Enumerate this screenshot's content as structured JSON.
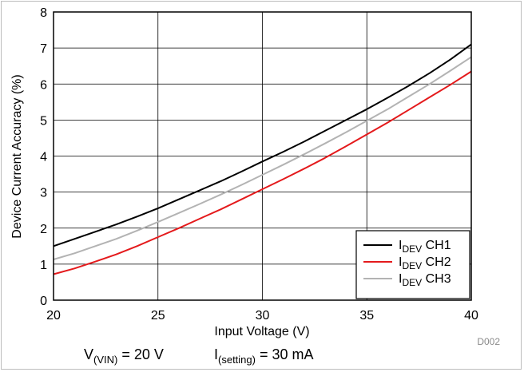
{
  "chart_data": {
    "type": "line",
    "xlabel": "Input Voltage (V)",
    "ylabel": "Device Current Accuracy (%)",
    "xlim": [
      20,
      40
    ],
    "ylim": [
      0,
      8
    ],
    "x_ticks": [
      20,
      25,
      30,
      35,
      40
    ],
    "y_ticks": [
      0,
      1,
      2,
      3,
      4,
      5,
      6,
      7,
      8
    ],
    "grid": true,
    "legend_position": "bottom-right",
    "series": [
      {
        "name_main": "I",
        "name_sub": "DEV",
        "name_suffix": " CH1",
        "color": "#000000",
        "x": [
          20,
          21,
          22,
          23,
          24,
          25,
          26,
          27,
          28,
          29,
          30,
          31,
          32,
          33,
          34,
          35,
          36,
          37,
          38,
          39,
          40
        ],
        "y": [
          1.5,
          1.7,
          1.9,
          2.1,
          2.32,
          2.55,
          2.8,
          3.05,
          3.3,
          3.57,
          3.85,
          4.12,
          4.4,
          4.7,
          5.0,
          5.3,
          5.62,
          5.95,
          6.3,
          6.68,
          7.1
        ]
      },
      {
        "name_main": "I",
        "name_sub": "DEV",
        "name_suffix": " CH2",
        "color": "#e41a1c",
        "x": [
          20,
          21,
          22,
          23,
          24,
          25,
          26,
          27,
          28,
          29,
          30,
          31,
          32,
          33,
          34,
          35,
          36,
          37,
          38,
          39,
          40
        ],
        "y": [
          0.72,
          0.88,
          1.07,
          1.27,
          1.5,
          1.75,
          2.0,
          2.26,
          2.52,
          2.8,
          3.08,
          3.36,
          3.65,
          3.95,
          4.27,
          4.6,
          4.93,
          5.28,
          5.63,
          5.98,
          6.35
        ]
      },
      {
        "name_main": "I",
        "name_sub": "DEV",
        "name_suffix": " CH3",
        "color": "#b3b3b3",
        "x": [
          20,
          21,
          22,
          23,
          24,
          25,
          26,
          27,
          28,
          29,
          30,
          31,
          32,
          33,
          34,
          35,
          36,
          37,
          38,
          39,
          40
        ],
        "y": [
          1.13,
          1.3,
          1.5,
          1.7,
          1.93,
          2.17,
          2.42,
          2.67,
          2.93,
          3.2,
          3.48,
          3.76,
          4.05,
          4.35,
          4.66,
          4.98,
          5.3,
          5.65,
          6.0,
          6.37,
          6.75
        ]
      }
    ],
    "figure_id": "D002",
    "conditions": [
      {
        "main": "V",
        "sub": "(VIN)",
        "rest": " = 20 V"
      },
      {
        "main": "I",
        "sub": "(setting)",
        "rest": " = 30 mA"
      }
    ]
  }
}
